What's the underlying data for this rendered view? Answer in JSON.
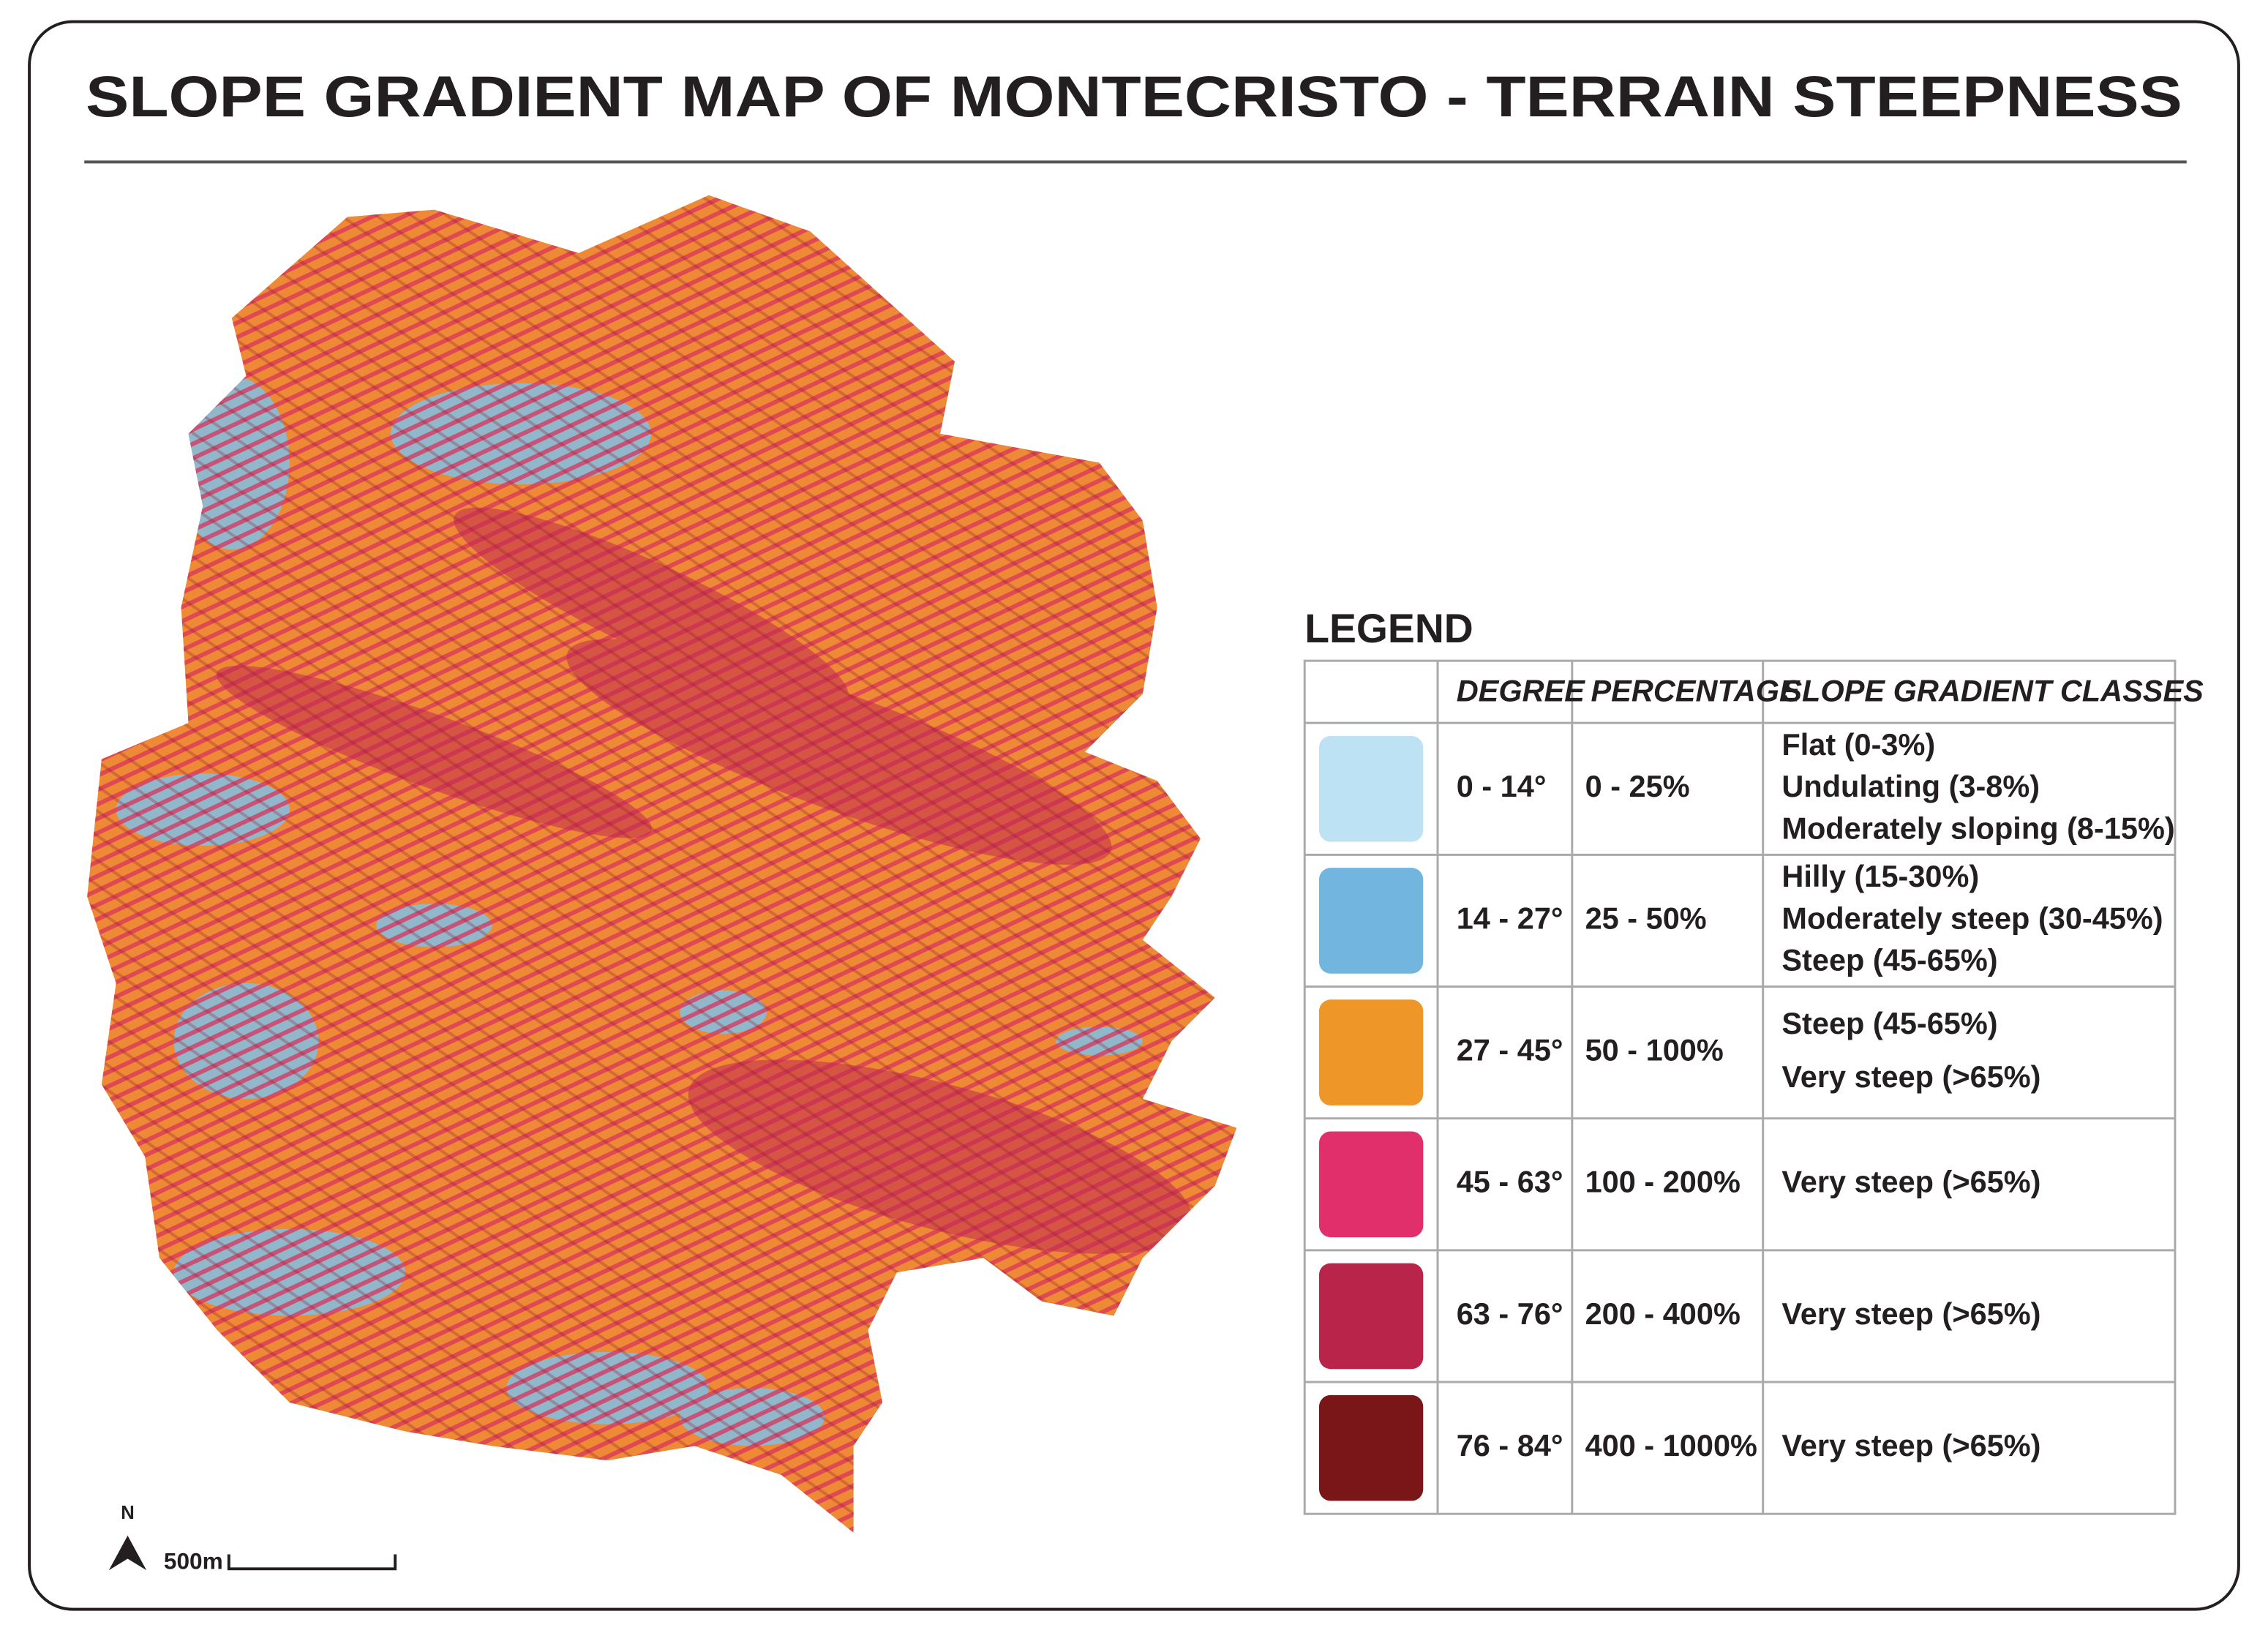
{
  "title": "SLOPE GRADIENT MAP OF MONTECRISTO - TERRAIN STEEPNESS",
  "legend": {
    "heading": "LEGEND",
    "columns": [
      "DEGREE",
      "PERCENTAGE",
      "SLOPE GRADIENT CLASSES"
    ],
    "rows": [
      {
        "color": "#bde2f4",
        "degree": "0 - 14°",
        "percentage": "0 - 25%",
        "classes": [
          "Flat (0-3%)",
          "Undulating (3-8%)",
          "Moderately sloping (8-15%)"
        ]
      },
      {
        "color": "#72b6e0",
        "degree": "14 - 27°",
        "percentage": "25 - 50%",
        "classes": [
          "Hilly (15-30%)",
          "Moderately steep (30-45%)",
          "Steep (45-65%)"
        ]
      },
      {
        "color": "#ee9627",
        "degree": "27 - 45°",
        "percentage": "50 - 100%",
        "classes": [
          "Steep (45-65%)",
          "Very steep (>65%)"
        ]
      },
      {
        "color": "#e12f6b",
        "degree": "45 - 63°",
        "percentage": "100 - 200%",
        "classes": [
          "Very steep (>65%)"
        ]
      },
      {
        "color": "#b9244a",
        "degree": "63 - 76°",
        "percentage": "200 - 400%",
        "classes": [
          "Very steep (>65%)"
        ]
      },
      {
        "color": "#7a1518",
        "degree": "76 - 84°",
        "percentage": "400 - 1000%",
        "classes": [
          "Very steep (>65%)"
        ]
      }
    ]
  },
  "north": "N",
  "scale_bar": "500m"
}
